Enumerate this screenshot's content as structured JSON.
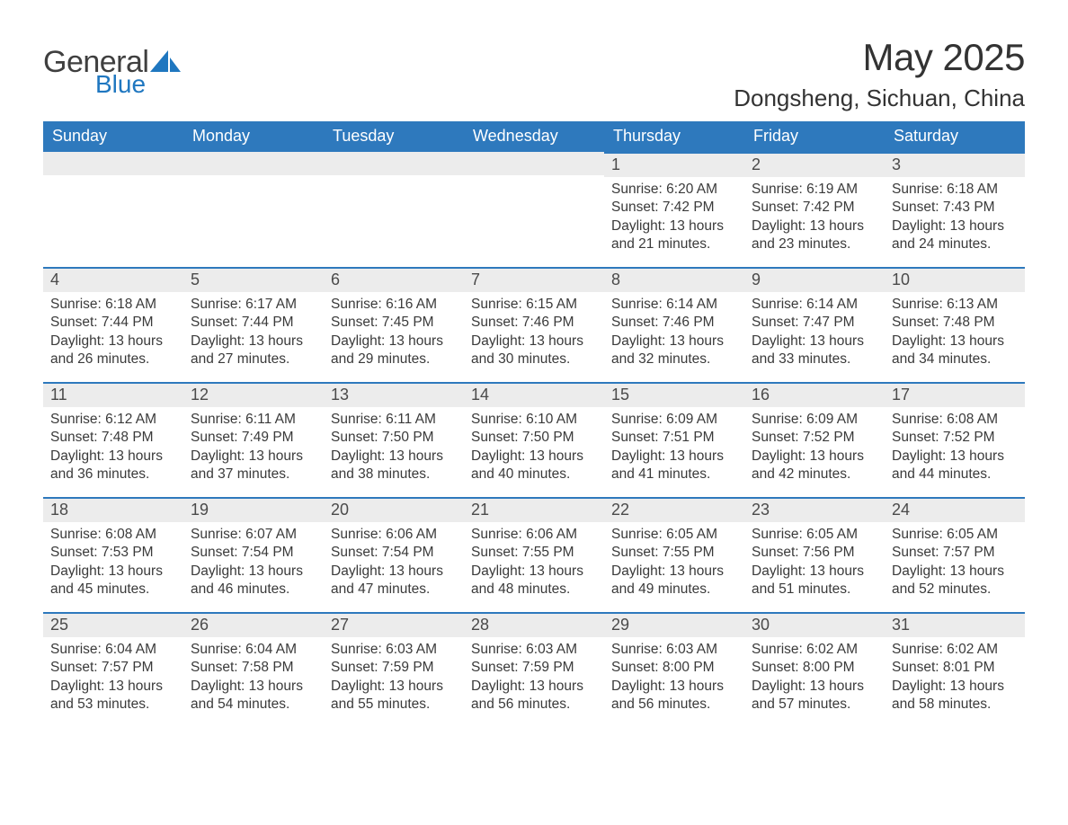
{
  "logo": {
    "word1": "General",
    "word2": "Blue",
    "sail_color": "#1f77c0"
  },
  "title": "May 2025",
  "location": "Dongsheng, Sichuan, China",
  "colors": {
    "header_bg": "#2e79bd",
    "header_text": "#ffffff",
    "daybar_bg": "#ececec",
    "daybar_border": "#2e79bd",
    "text": "#3a3a3a"
  },
  "typography": {
    "title_fontsize": 42,
    "location_fontsize": 26,
    "header_fontsize": 18,
    "daynum_fontsize": 18,
    "body_fontsize": 15.5
  },
  "columns": [
    "Sunday",
    "Monday",
    "Tuesday",
    "Wednesday",
    "Thursday",
    "Friday",
    "Saturday"
  ],
  "weeks": [
    [
      null,
      null,
      null,
      null,
      {
        "n": "1",
        "sunrise": "6:20 AM",
        "sunset": "7:42 PM",
        "dl_h": "13",
        "dl_m": "21"
      },
      {
        "n": "2",
        "sunrise": "6:19 AM",
        "sunset": "7:42 PM",
        "dl_h": "13",
        "dl_m": "23"
      },
      {
        "n": "3",
        "sunrise": "6:18 AM",
        "sunset": "7:43 PM",
        "dl_h": "13",
        "dl_m": "24"
      }
    ],
    [
      {
        "n": "4",
        "sunrise": "6:18 AM",
        "sunset": "7:44 PM",
        "dl_h": "13",
        "dl_m": "26"
      },
      {
        "n": "5",
        "sunrise": "6:17 AM",
        "sunset": "7:44 PM",
        "dl_h": "13",
        "dl_m": "27"
      },
      {
        "n": "6",
        "sunrise": "6:16 AM",
        "sunset": "7:45 PM",
        "dl_h": "13",
        "dl_m": "29"
      },
      {
        "n": "7",
        "sunrise": "6:15 AM",
        "sunset": "7:46 PM",
        "dl_h": "13",
        "dl_m": "30"
      },
      {
        "n": "8",
        "sunrise": "6:14 AM",
        "sunset": "7:46 PM",
        "dl_h": "13",
        "dl_m": "32"
      },
      {
        "n": "9",
        "sunrise": "6:14 AM",
        "sunset": "7:47 PM",
        "dl_h": "13",
        "dl_m": "33"
      },
      {
        "n": "10",
        "sunrise": "6:13 AM",
        "sunset": "7:48 PM",
        "dl_h": "13",
        "dl_m": "34"
      }
    ],
    [
      {
        "n": "11",
        "sunrise": "6:12 AM",
        "sunset": "7:48 PM",
        "dl_h": "13",
        "dl_m": "36"
      },
      {
        "n": "12",
        "sunrise": "6:11 AM",
        "sunset": "7:49 PM",
        "dl_h": "13",
        "dl_m": "37"
      },
      {
        "n": "13",
        "sunrise": "6:11 AM",
        "sunset": "7:50 PM",
        "dl_h": "13",
        "dl_m": "38"
      },
      {
        "n": "14",
        "sunrise": "6:10 AM",
        "sunset": "7:50 PM",
        "dl_h": "13",
        "dl_m": "40"
      },
      {
        "n": "15",
        "sunrise": "6:09 AM",
        "sunset": "7:51 PM",
        "dl_h": "13",
        "dl_m": "41"
      },
      {
        "n": "16",
        "sunrise": "6:09 AM",
        "sunset": "7:52 PM",
        "dl_h": "13",
        "dl_m": "42"
      },
      {
        "n": "17",
        "sunrise": "6:08 AM",
        "sunset": "7:52 PM",
        "dl_h": "13",
        "dl_m": "44"
      }
    ],
    [
      {
        "n": "18",
        "sunrise": "6:08 AM",
        "sunset": "7:53 PM",
        "dl_h": "13",
        "dl_m": "45"
      },
      {
        "n": "19",
        "sunrise": "6:07 AM",
        "sunset": "7:54 PM",
        "dl_h": "13",
        "dl_m": "46"
      },
      {
        "n": "20",
        "sunrise": "6:06 AM",
        "sunset": "7:54 PM",
        "dl_h": "13",
        "dl_m": "47"
      },
      {
        "n": "21",
        "sunrise": "6:06 AM",
        "sunset": "7:55 PM",
        "dl_h": "13",
        "dl_m": "48"
      },
      {
        "n": "22",
        "sunrise": "6:05 AM",
        "sunset": "7:55 PM",
        "dl_h": "13",
        "dl_m": "49"
      },
      {
        "n": "23",
        "sunrise": "6:05 AM",
        "sunset": "7:56 PM",
        "dl_h": "13",
        "dl_m": "51"
      },
      {
        "n": "24",
        "sunrise": "6:05 AM",
        "sunset": "7:57 PM",
        "dl_h": "13",
        "dl_m": "52"
      }
    ],
    [
      {
        "n": "25",
        "sunrise": "6:04 AM",
        "sunset": "7:57 PM",
        "dl_h": "13",
        "dl_m": "53"
      },
      {
        "n": "26",
        "sunrise": "6:04 AM",
        "sunset": "7:58 PM",
        "dl_h": "13",
        "dl_m": "54"
      },
      {
        "n": "27",
        "sunrise": "6:03 AM",
        "sunset": "7:59 PM",
        "dl_h": "13",
        "dl_m": "55"
      },
      {
        "n": "28",
        "sunrise": "6:03 AM",
        "sunset": "7:59 PM",
        "dl_h": "13",
        "dl_m": "56"
      },
      {
        "n": "29",
        "sunrise": "6:03 AM",
        "sunset": "8:00 PM",
        "dl_h": "13",
        "dl_m": "56"
      },
      {
        "n": "30",
        "sunrise": "6:02 AM",
        "sunset": "8:00 PM",
        "dl_h": "13",
        "dl_m": "57"
      },
      {
        "n": "31",
        "sunrise": "6:02 AM",
        "sunset": "8:01 PM",
        "dl_h": "13",
        "dl_m": "58"
      }
    ]
  ],
  "labels": {
    "sunrise": "Sunrise: ",
    "sunset": "Sunset: ",
    "daylight_a": "Daylight: ",
    "daylight_b": " hours and ",
    "daylight_c": " minutes."
  }
}
